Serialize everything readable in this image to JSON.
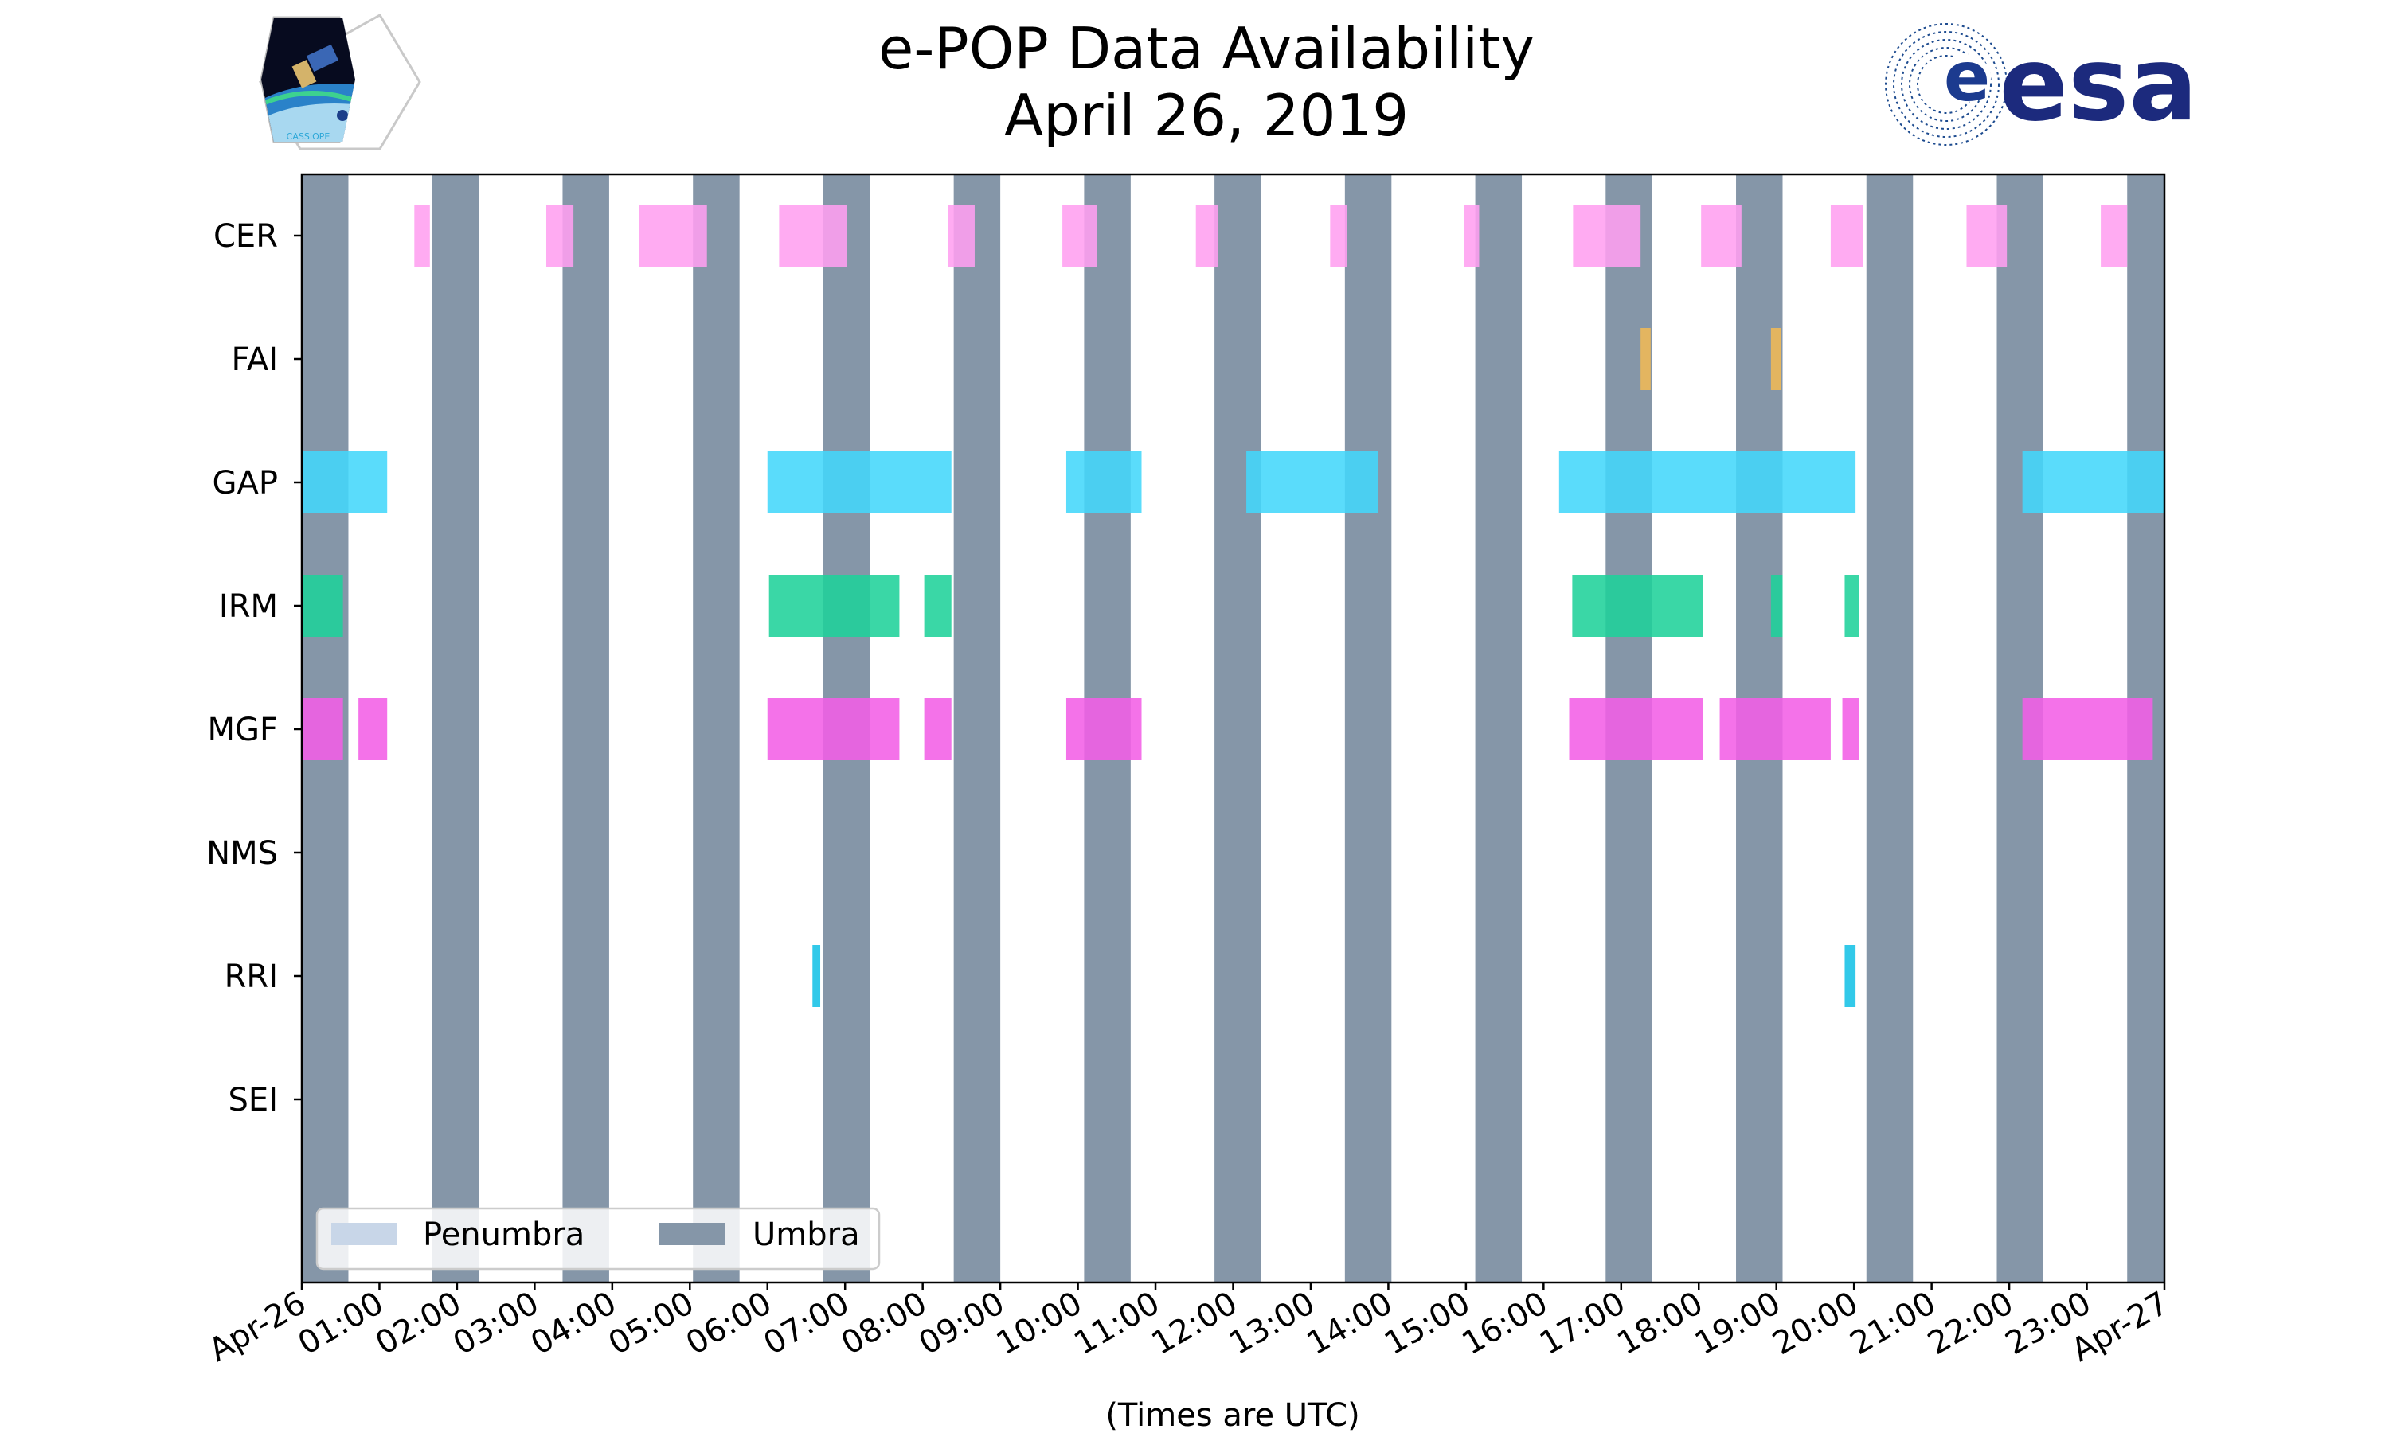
{
  "chart_data": {
    "type": "timeline",
    "title": "e-POP Data Availability",
    "subtitle": "April 26, 2019",
    "xlabel": "(Times are UTC)",
    "xlim_hours": [
      0,
      24
    ],
    "x_tick_labels": [
      "Apr-26",
      "01:00",
      "02:00",
      "03:00",
      "04:00",
      "05:00",
      "06:00",
      "07:00",
      "08:00",
      "09:00",
      "10:00",
      "11:00",
      "12:00",
      "13:00",
      "14:00",
      "15:00",
      "16:00",
      "17:00",
      "18:00",
      "19:00",
      "20:00",
      "21:00",
      "22:00",
      "23:00",
      "Apr-27"
    ],
    "instruments": [
      "CER",
      "FAI",
      "GAP",
      "IRM",
      "MGF",
      "NMS",
      "RRI",
      "SEI"
    ],
    "legend": [
      {
        "label": "Penumbra",
        "color": "#c8d6e8"
      },
      {
        "label": "Umbra",
        "color": "#8596a8"
      }
    ],
    "umbra_intervals": [
      [
        0.0,
        0.6
      ],
      [
        1.68,
        2.28
      ],
      [
        3.36,
        3.96
      ],
      [
        5.04,
        5.64
      ],
      [
        6.72,
        7.32
      ],
      [
        8.4,
        9.0
      ],
      [
        10.08,
        10.68
      ],
      [
        11.76,
        12.36
      ],
      [
        13.44,
        14.04
      ],
      [
        15.12,
        15.72
      ],
      [
        16.8,
        17.4
      ],
      [
        18.48,
        19.08
      ],
      [
        20.16,
        20.76
      ],
      [
        21.84,
        22.44
      ],
      [
        23.52,
        24.0
      ]
    ],
    "umbra_color": "#8596a8",
    "series": [
      {
        "name": "CER",
        "color": "#ff9ff0",
        "intervals": [
          [
            1.45,
            1.65
          ],
          [
            3.15,
            3.5
          ],
          [
            4.35,
            5.22
          ],
          [
            6.15,
            7.02
          ],
          [
            8.33,
            8.67
          ],
          [
            9.8,
            10.25
          ],
          [
            11.52,
            11.8
          ],
          [
            13.25,
            13.47
          ],
          [
            14.98,
            15.17
          ],
          [
            16.38,
            17.25
          ],
          [
            18.03,
            18.55
          ],
          [
            19.7,
            20.12
          ],
          [
            21.45,
            21.97
          ],
          [
            23.18,
            23.52
          ]
        ]
      },
      {
        "name": "FAI",
        "color": "#f0b955",
        "intervals": [
          [
            17.25,
            17.38
          ],
          [
            18.93,
            19.06
          ]
        ]
      },
      {
        "name": "GAP",
        "color": "#43d7fa",
        "intervals": [
          [
            0.0,
            1.1
          ],
          [
            6.0,
            8.37
          ],
          [
            9.85,
            10.82
          ],
          [
            12.17,
            13.87
          ],
          [
            16.2,
            20.02
          ],
          [
            22.17,
            24.0
          ]
        ]
      },
      {
        "name": "IRM",
        "color": "#1fd19a",
        "intervals": [
          [
            0.0,
            0.53
          ],
          [
            6.02,
            7.7
          ],
          [
            8.02,
            8.37
          ],
          [
            16.37,
            18.05
          ],
          [
            18.93,
            19.08
          ],
          [
            19.88,
            20.07
          ]
        ]
      },
      {
        "name": "MGF",
        "color": "#f25ee6",
        "intervals": [
          [
            0.0,
            0.53
          ],
          [
            0.73,
            1.1
          ],
          [
            6.0,
            7.7
          ],
          [
            8.02,
            8.37
          ],
          [
            9.85,
            10.82
          ],
          [
            16.33,
            18.05
          ],
          [
            18.27,
            19.7
          ],
          [
            19.85,
            20.07
          ],
          [
            22.17,
            23.85
          ]
        ]
      },
      {
        "name": "NMS",
        "color": "#6a8cd9",
        "intervals": []
      },
      {
        "name": "RRI",
        "color": "#16c1e6",
        "intervals": [
          [
            6.58,
            6.68
          ],
          [
            19.88,
            20.02
          ]
        ]
      },
      {
        "name": "SEI",
        "color": "#9b7fe0",
        "intervals": []
      }
    ]
  },
  "logos": {
    "cassiope_text": "CASSIOPE",
    "esa_text": "esa"
  }
}
